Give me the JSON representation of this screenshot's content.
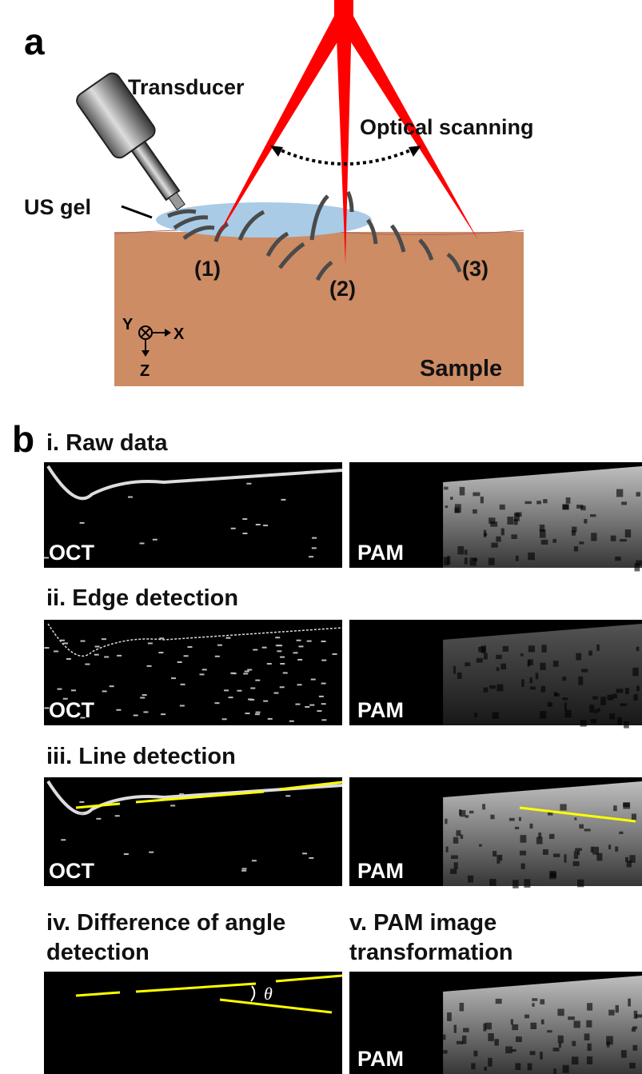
{
  "panel_a": {
    "label": "a",
    "transducer": "Transducer",
    "optical_scanning": "Optical scanning",
    "us_gel": "US gel",
    "points": [
      "(1)",
      "(2)",
      "(3)"
    ],
    "axes": {
      "y": "Y",
      "x": "X",
      "z": "Z"
    },
    "sample": "Sample"
  },
  "panel_b": {
    "label": "b",
    "steps": [
      {
        "title_lines": [
          "i. Raw data"
        ],
        "images": [
          "OCT",
          "PAM"
        ]
      },
      {
        "title_lines": [
          "ii. Edge detection"
        ],
        "images": [
          "OCT",
          "PAM"
        ]
      },
      {
        "title_lines": [
          "iii. Line detection"
        ],
        "images": [
          "OCT",
          "PAM"
        ]
      },
      {
        "title_lines": [
          "iv. Difference of angle",
          "detection"
        ],
        "images": [],
        "angle": "θ"
      },
      {
        "title_lines": [
          "v. PAM image",
          "transformation"
        ],
        "images": [
          "PAM"
        ]
      }
    ]
  }
}
